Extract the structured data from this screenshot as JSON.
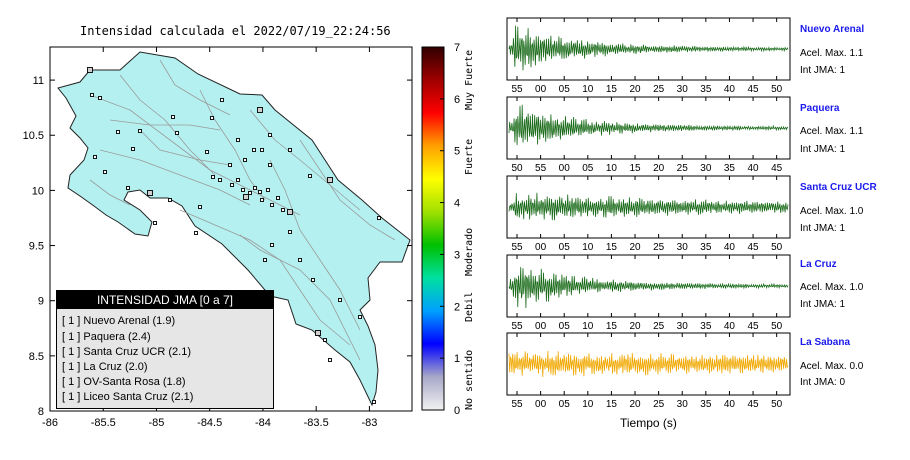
{
  "map": {
    "title": "Intensidad calculada el 2022/07/19_22:24:56",
    "x_ticks": [
      "-86",
      "-85.5",
      "-85",
      "-84.5",
      "-84",
      "-83.5",
      "-83"
    ],
    "y_ticks": [
      "8",
      "8.5",
      "9",
      "9.5",
      "10",
      "10.5",
      "11"
    ],
    "x_range": [
      -86.0,
      -82.6
    ],
    "y_range": [
      8.0,
      11.3
    ],
    "fill_color": "#b4f0f0",
    "legend": {
      "title": "INTENSIDAD JMA [0 a 7]",
      "items": [
        "[ 1 ]  Nuevo Arenal (1.9)",
        "[ 1 ]  Paquera (2.4)",
        "[ 1 ]  Santa Cruz UCR (2.1)",
        "[ 1 ]  La Cruz (2.0)",
        "[ 1 ]  OV-Santa Rosa (1.8)",
        "[ 1 ]  Liceo Santa Cruz (2.1)"
      ]
    }
  },
  "colorbar": {
    "ticks": [
      "0",
      "1",
      "2",
      "3",
      "4",
      "5",
      "6",
      "7"
    ],
    "labels": [
      "No sentido",
      "Debil",
      "Moderado",
      "Fuerte",
      "Muy Fuerte"
    ],
    "colors": [
      "#f2f2f2",
      "#a8a8c8",
      "#0000ff",
      "#00a0ff",
      "#00e0a0",
      "#00c000",
      "#a0e000",
      "#ffff00",
      "#ffa000",
      "#ff0000",
      "#a00000",
      "#300000"
    ]
  },
  "chart_data": {
    "type": "line",
    "xlabel": "Tiempo (s)",
    "stations": [
      {
        "name": "Nuevo Arenal",
        "acc": "Acel. Max. 1.1",
        "jma": "Int JMA: 1",
        "color": "#1a6b1a",
        "ticks": [
          "55",
          "00",
          "05",
          "10",
          "15",
          "20",
          "25",
          "30",
          "35",
          "40",
          "45",
          "50"
        ],
        "tick_start": 0.0145
      },
      {
        "name": "Paquera",
        "acc": "Acel. Max. 1.1",
        "jma": "Int JMA: 1",
        "color": "#1a6b1a",
        "ticks": [
          "50",
          "55",
          "00",
          "05",
          "10",
          "15",
          "20",
          "25",
          "30",
          "35",
          "40",
          "45"
        ],
        "tick_start": 0.0145
      },
      {
        "name": "Santa Cruz UCR",
        "acc": "Acel. Max. 1.0",
        "jma": "Int JMA: 1",
        "color": "#1a6b1a",
        "ticks": [
          "55",
          "00",
          "05",
          "10",
          "15",
          "20",
          "25",
          "30",
          "35",
          "40",
          "45",
          "50"
        ],
        "tick_start": 0.0145
      },
      {
        "name": "La Cruz",
        "acc": "Acel. Max. 1.0",
        "jma": "Int JMA: 1",
        "color": "#1a6b1a",
        "ticks": [
          "55",
          "00",
          "05",
          "10",
          "15",
          "20",
          "25",
          "30",
          "35",
          "40",
          "45",
          "50"
        ],
        "tick_start": 0.0145
      },
      {
        "name": "La Sabana",
        "acc": "Acel. Max. 0.0",
        "jma": "Int JMA: 0",
        "color": "#f0a800",
        "ticks": [
          "55",
          "00",
          "05",
          "10",
          "15",
          "20",
          "25",
          "30",
          "35",
          "40",
          "45",
          "50"
        ],
        "tick_start": 0.0145
      }
    ]
  }
}
